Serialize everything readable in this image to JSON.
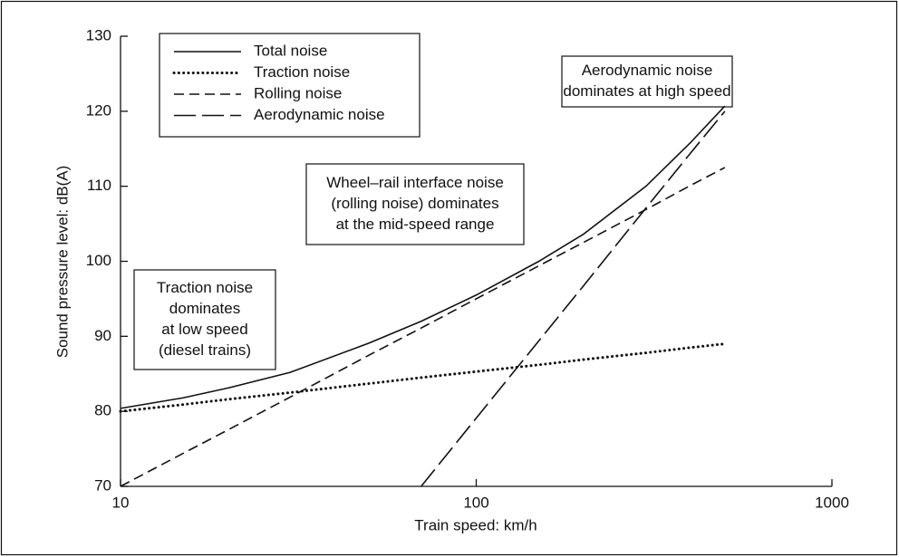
{
  "chart_data": {
    "type": "line",
    "xlabel": "Train speed: km/h",
    "ylabel": "Sound pressure level: dB(A)",
    "x": [
      10,
      15,
      20,
      30,
      50,
      70,
      100,
      150,
      200,
      300,
      400,
      500
    ],
    "xscale": "log",
    "xlim": [
      10,
      1000
    ],
    "xticks": [
      10,
      100,
      1000
    ],
    "ylim": [
      70,
      130
    ],
    "yticks": [
      70,
      80,
      90,
      100,
      110,
      120,
      130
    ],
    "grid": false,
    "legend": "upper left",
    "series": [
      {
        "name": "Total noise",
        "color": "#111111",
        "style": "solid",
        "values": [
          80.4,
          81.8,
          83.1,
          85.2,
          89.1,
          92.0,
          95.5,
          100.0,
          103.6,
          110.0,
          115.8,
          120.7
        ]
      },
      {
        "name": "Traction noise",
        "color": "#111111",
        "style": "dotted",
        "values": [
          80,
          80.9,
          81.6,
          82.5,
          83.7,
          84.5,
          85.3,
          86.2,
          86.9,
          87.8,
          88.5,
          89.0
        ]
      },
      {
        "name": "Rolling noise",
        "color": "#111111",
        "style": "dashed",
        "values": [
          70,
          74.4,
          77.5,
          81.9,
          87.5,
          91.1,
          95,
          99.4,
          102.5,
          106.9,
          110.1,
          112.5
        ]
      },
      {
        "name": "Aerodynamic noise",
        "color": "#111111",
        "style": "longdash",
        "values": [
          null,
          null,
          null,
          null,
          null,
          70,
          79.1,
          89.4,
          96.7,
          107.1,
          114.4,
          120.0
        ]
      }
    ],
    "annotations": [
      [
        "Aerodynamic noise",
        "dominates at high speed"
      ],
      [
        "Wheel–rail interface noise",
        "(rolling noise) dominates",
        "at the mid-speed range"
      ],
      [
        "Traction noise",
        "dominates",
        "at low speed",
        "(diesel trains)"
      ]
    ]
  }
}
